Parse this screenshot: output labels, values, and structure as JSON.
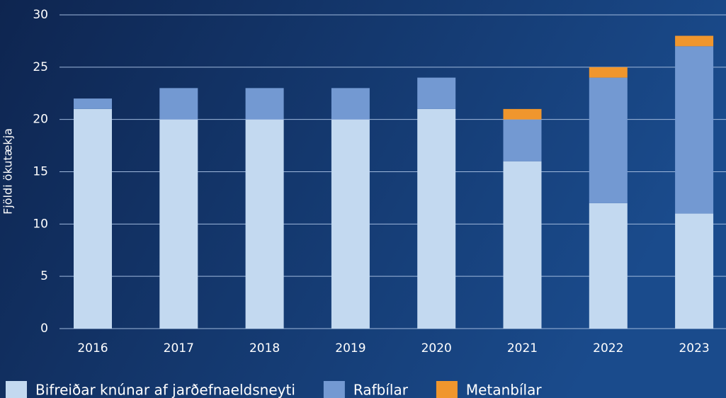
{
  "chart_data": {
    "type": "stacked_bar",
    "ylabel": "Fjöldi ökutækja",
    "categories": [
      "2016",
      "2017",
      "2018",
      "2019",
      "2020",
      "2021",
      "2022",
      "2023"
    ],
    "series": [
      {
        "name": "Bifreiðar knúnar af jarðefnaeldsneyti",
        "color": "#c3d9f0",
        "values": [
          21,
          20,
          20,
          20,
          21,
          16,
          12,
          11
        ]
      },
      {
        "name": "Rafbílar",
        "color": "#7399d2",
        "values": [
          1,
          3,
          3,
          3,
          3,
          4,
          12,
          16
        ]
      },
      {
        "name": "Metanbílar",
        "color": "#f0962d",
        "values": [
          0,
          0,
          0,
          0,
          0,
          1,
          1,
          1
        ]
      }
    ],
    "ylim": [
      0,
      30
    ],
    "yticks": [
      0,
      5,
      10,
      15,
      20,
      25,
      30
    ],
    "grid": true
  }
}
